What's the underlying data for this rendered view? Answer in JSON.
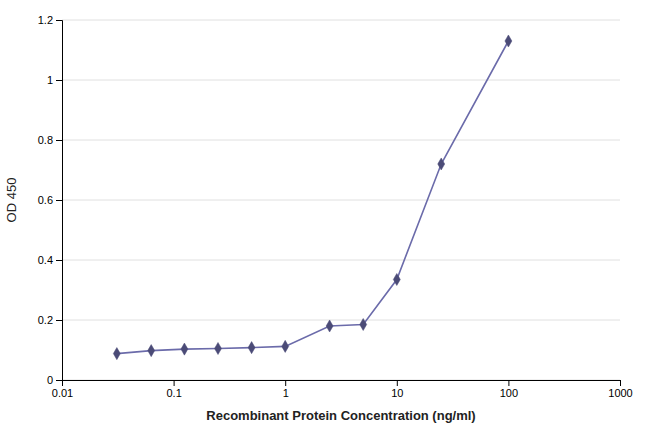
{
  "chart_data": {
    "type": "line",
    "x_label": "Recombinant Protein Concentration (ng/ml)",
    "y_label": "OD 450",
    "x": [
      0.031,
      0.063,
      0.125,
      0.25,
      0.5,
      1.0,
      2.5,
      5.0,
      10.0,
      25.0,
      100.0
    ],
    "values": [
      0.088,
      0.098,
      0.103,
      0.105,
      0.108,
      0.112,
      0.18,
      0.185,
      0.335,
      0.72,
      1.13
    ],
    "color": "#6b6baa",
    "marker": "diamond",
    "log": "x",
    "xlim": [
      0.01,
      1000
    ],
    "xticks": [
      0.01,
      0.1,
      1,
      10,
      100,
      1000
    ],
    "ylim": [
      0,
      1.2
    ],
    "yticks": [
      0,
      0.2,
      0.4,
      0.6,
      0.8,
      1.0,
      1.2
    ],
    "grid": "y"
  }
}
